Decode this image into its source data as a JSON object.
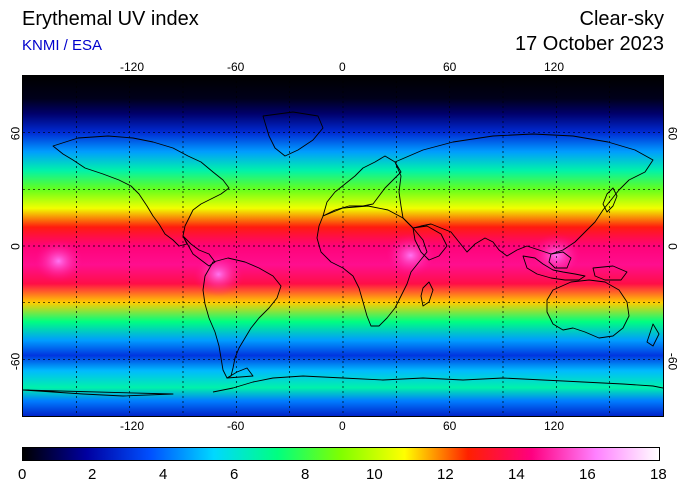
{
  "header": {
    "title": "Erythemal UV index",
    "credit": "KNMI / ESA",
    "mode": "Clear-sky",
    "date": "17 October 2023"
  },
  "map": {
    "projection": "equirectangular",
    "lon_range": [
      -180,
      180
    ],
    "lat_range": [
      -90,
      90
    ],
    "lon_ticks": [
      "-120",
      "-60",
      "0",
      "60",
      "120"
    ],
    "lat_ticks": [
      "60",
      "0",
      "-60"
    ],
    "gridlines": "dashed every 30 degrees",
    "coastline_color": "#000000"
  },
  "colorbar": {
    "ticks": [
      "0",
      "2",
      "4",
      "6",
      "8",
      "10",
      "12",
      "14",
      "16",
      "18"
    ],
    "range": [
      0,
      18
    ],
    "colors": [
      "#000000",
      "#0000a0",
      "#0050ff",
      "#00d8ff",
      "#00ff80",
      "#80ff00",
      "#ffff00",
      "#ff2000",
      "#ff0080",
      "#ff80ff",
      "#ffffff"
    ]
  },
  "uv_profile": [
    {
      "lat": 90,
      "uv": 0.0
    },
    {
      "lat": 78,
      "uv": 0.3
    },
    {
      "lat": 70,
      "uv": 1.2
    },
    {
      "lat": 60,
      "uv": 2.8
    },
    {
      "lat": 50,
      "uv": 4.6
    },
    {
      "lat": 40,
      "uv": 6.6
    },
    {
      "lat": 30,
      "uv": 8.6
    },
    {
      "lat": 20,
      "uv": 10.6
    },
    {
      "lat": 10,
      "uv": 12.8
    },
    {
      "lat": 0,
      "uv": 14.3
    },
    {
      "lat": -10,
      "uv": 14.6
    },
    {
      "lat": -20,
      "uv": 13.6
    },
    {
      "lat": -30,
      "uv": 11.2
    },
    {
      "lat": -40,
      "uv": 7.2
    },
    {
      "lat": -50,
      "uv": 4.6
    },
    {
      "lat": -58,
      "uv": 3.0
    },
    {
      "lat": -66,
      "uv": 5.0
    },
    {
      "lat": -75,
      "uv": 6.6
    },
    {
      "lat": -82,
      "uv": 4.2
    },
    {
      "lat": -90,
      "uv": 2.6
    }
  ],
  "uv_hotspots": [
    {
      "name": "Andes",
      "lon": -70,
      "lat": -15,
      "uv": 17
    },
    {
      "name": "Indonesia",
      "lon": 120,
      "lat": -5,
      "uv": 16
    },
    {
      "name": "Central Pacific",
      "lon": -160,
      "lat": -8,
      "uv": 15.5
    },
    {
      "name": "East Africa",
      "lon": 38,
      "lat": -5,
      "uv": 16
    }
  ]
}
